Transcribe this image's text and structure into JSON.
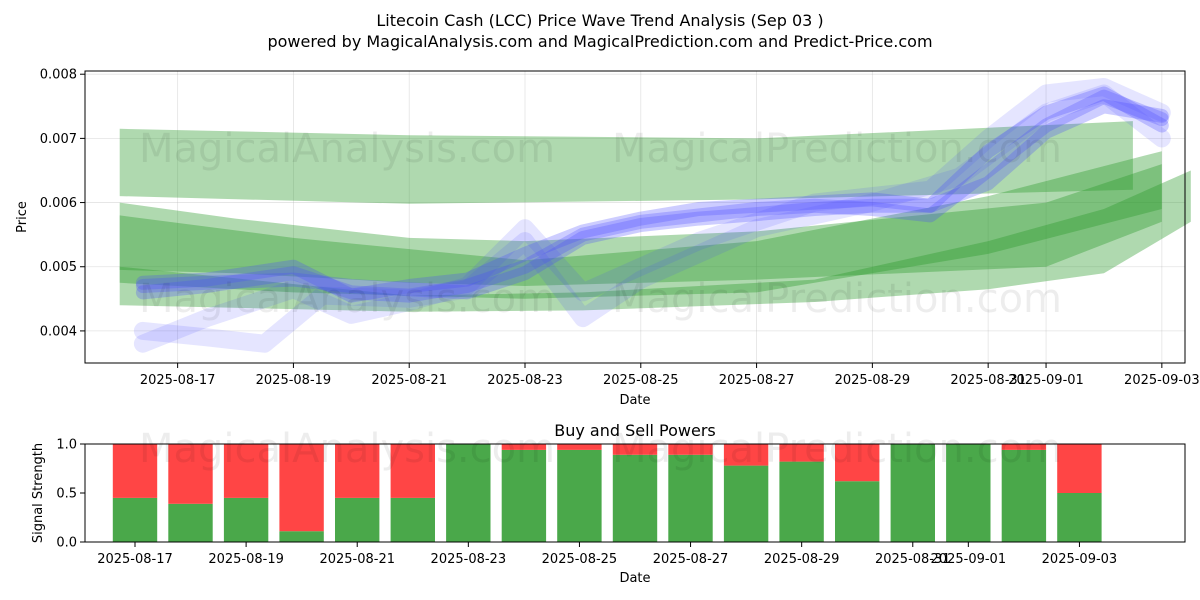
{
  "title": "Litecoin Cash (LCC) Price Wave Trend Analysis (Sep 03 )",
  "subtitle": "powered by MagicalAnalysis.com and MagicalPrediction.com and Predict-Price.com",
  "watermarks": [
    "MagicalAnalysis.com",
    "MagicalPrediction.com"
  ],
  "chart_data": [
    {
      "type": "area",
      "name": "price-wave",
      "xlabel": "Date",
      "ylabel": "Price",
      "xlim": [
        -1.6,
        17.4
      ],
      "ylim": [
        0.0035,
        0.00805
      ],
      "grid": true,
      "x_ticks": [
        {
          "pos": 0,
          "label": "2025-08-17"
        },
        {
          "pos": 2,
          "label": "2025-08-19"
        },
        {
          "pos": 4,
          "label": "2025-08-21"
        },
        {
          "pos": 6,
          "label": "2025-08-23"
        },
        {
          "pos": 8,
          "label": "2025-08-25"
        },
        {
          "pos": 10,
          "label": "2025-08-27"
        },
        {
          "pos": 12,
          "label": "2025-08-29"
        },
        {
          "pos": 14,
          "label": "2025-08-31"
        },
        {
          "pos": 15,
          "label": "2025-09-01"
        },
        {
          "pos": 17,
          "label": "2025-09-03"
        }
      ],
      "y_ticks": [
        {
          "value": 0.004,
          "label": "0.004"
        },
        {
          "value": 0.005,
          "label": "0.005"
        },
        {
          "value": 0.006,
          "label": "0.006"
        },
        {
          "value": 0.007,
          "label": "0.007"
        },
        {
          "value": 0.008,
          "label": "0.008"
        }
      ],
      "green_bands": [
        {
          "x": [
            -1.0,
            4.0,
            10.0,
            16.5
          ],
          "upper": [
            0.00715,
            0.00705,
            0.007,
            0.00727
          ],
          "lower": [
            0.0061,
            0.00598,
            0.00605,
            0.0062
          ]
        },
        {
          "x": [
            -1.0,
            1.0,
            4.0,
            6.0,
            10.0,
            15.0,
            17.0
          ],
          "upper": [
            0.006,
            0.00575,
            0.00545,
            0.0054,
            0.00555,
            0.006,
            0.0066
          ],
          "lower": [
            0.00495,
            0.0049,
            0.00475,
            0.0047,
            0.0048,
            0.005,
            0.0057
          ]
        },
        {
          "x": [
            -1.0,
            2.0,
            6.0,
            10.0,
            14.0,
            17.0
          ],
          "upper": [
            0.0058,
            0.00545,
            0.0051,
            0.0054,
            0.0061,
            0.0068
          ],
          "lower": [
            0.00475,
            0.0046,
            0.0045,
            0.0046,
            0.0052,
            0.0059
          ]
        },
        {
          "x": [
            -1.0,
            4.0,
            7.0,
            11.0,
            14.0,
            16.0,
            17.5
          ],
          "upper": [
            0.005,
            0.00455,
            0.0046,
            0.0048,
            0.0054,
            0.0059,
            0.0065
          ],
          "lower": [
            0.0044,
            0.0043,
            0.00432,
            0.00445,
            0.00465,
            0.0049,
            0.0057
          ]
        }
      ],
      "blue_series": [
        {
          "x": [
            -0.6,
            0.5,
            2.0,
            3.0,
            4.0,
            5.0,
            6.0,
            7.0,
            8.0,
            9.0,
            10.0,
            11.0,
            12.0,
            13.0,
            14.0,
            15.0,
            16.0,
            17.0
          ],
          "values": [
            0.0047,
            0.00475,
            0.0048,
            0.0047,
            0.00465,
            0.0046,
            0.0049,
            0.00545,
            0.00565,
            0.00575,
            0.00582,
            0.0059,
            0.00595,
            0.00595,
            0.0063,
            0.0071,
            0.0075,
            0.00735
          ]
        },
        {
          "x": [
            -0.6,
            0.5,
            2.0,
            3.0,
            4.0,
            5.0,
            6.0,
            7.0,
            8.0,
            9.0,
            10.0,
            11.0,
            12.0,
            13.0,
            14.0,
            15.0,
            16.0,
            17.0
          ],
          "values": [
            0.0046,
            0.0047,
            0.0049,
            0.0046,
            0.00455,
            0.0047,
            0.005,
            0.0055,
            0.0057,
            0.0058,
            0.0059,
            0.00595,
            0.0059,
            0.0058,
            0.0065,
            0.0072,
            0.00765,
            0.0073
          ]
        },
        {
          "x": [
            -0.6,
            0.5,
            2.0,
            3.0,
            4.0,
            5.0,
            6.0,
            7.0,
            8.0,
            9.0,
            10.0,
            11.0,
            12.0,
            13.0,
            14.0,
            15.0,
            16.0,
            17.0
          ],
          "values": [
            0.00475,
            0.0048,
            0.005,
            0.00455,
            0.0047,
            0.0048,
            0.0052,
            0.00555,
            0.00575,
            0.0059,
            0.00595,
            0.006,
            0.00605,
            0.00595,
            0.0068,
            0.0074,
            0.0077,
            0.0072
          ]
        },
        {
          "x": [
            -0.6,
            0.5,
            2.0,
            3.0,
            4.0,
            5.0,
            6.0,
            7.0,
            8.0,
            9.0,
            10.0,
            11.0,
            12.0,
            13.0,
            14.0,
            15.0,
            16.0,
            17.0
          ],
          "values": [
            0.0038,
            0.0042,
            0.00465,
            0.00425,
            0.00445,
            0.0047,
            0.0056,
            0.0046,
            0.005,
            0.0054,
            0.0057,
            0.006,
            0.0061,
            0.0062,
            0.007,
            0.0077,
            0.0078,
            0.0074
          ]
        },
        {
          "x": [
            -0.6,
            0.5,
            1.5,
            2.5,
            4.0,
            5.0,
            6.0,
            7.0,
            8.0,
            10.0,
            12.0,
            13.5,
            15.0,
            16.0,
            17.0
          ],
          "values": [
            0.004,
            0.0039,
            0.0038,
            0.00455,
            0.0045,
            0.00465,
            0.0054,
            0.0042,
            0.0048,
            0.0056,
            0.006,
            0.0064,
            0.0074,
            0.0077,
            0.007
          ]
        }
      ]
    },
    {
      "type": "bar",
      "name": "buy-sell-powers",
      "title": "Buy and Sell Powers",
      "xlabel": "Date",
      "ylabel": "Signal Strength",
      "xlim": [
        -0.9,
        18.9
      ],
      "ylim": [
        0,
        1.0
      ],
      "x_ticks": [
        {
          "pos": 0,
          "label": "2025-08-17"
        },
        {
          "pos": 2,
          "label": "2025-08-19"
        },
        {
          "pos": 4,
          "label": "2025-08-21"
        },
        {
          "pos": 6,
          "label": "2025-08-23"
        },
        {
          "pos": 8,
          "label": "2025-08-25"
        },
        {
          "pos": 10,
          "label": "2025-08-27"
        },
        {
          "pos": 12,
          "label": "2025-08-29"
        },
        {
          "pos": 14,
          "label": "2025-08-31"
        },
        {
          "pos": 15,
          "label": "2025-09-01"
        },
        {
          "pos": 17,
          "label": "2025-09-03"
        }
      ],
      "y_ticks": [
        {
          "value": 0.0,
          "label": "0.0"
        },
        {
          "value": 0.5,
          "label": "0.5"
        },
        {
          "value": 1.0,
          "label": "1.0"
        }
      ],
      "categories": [
        "2025-08-17",
        "2025-08-18",
        "2025-08-19",
        "2025-08-20",
        "2025-08-21",
        "2025-08-22",
        "2025-08-23",
        "2025-08-24",
        "2025-08-25",
        "2025-08-26",
        "2025-08-27",
        "2025-08-28",
        "2025-08-29",
        "2025-08-30",
        "2025-08-31",
        "2025-09-01",
        "2025-09-02",
        "2025-09-03"
      ],
      "series": [
        {
          "name": "Buy",
          "color": "#4aa84a",
          "values": [
            0.45,
            0.39,
            0.45,
            0.11,
            0.45,
            0.45,
            1.0,
            0.94,
            0.94,
            0.89,
            0.89,
            0.78,
            0.82,
            0.62,
            1.0,
            1.0,
            0.94,
            0.5
          ]
        },
        {
          "name": "Sell",
          "color": "#ff4545",
          "values": [
            0.55,
            0.61,
            0.55,
            0.89,
            0.55,
            0.55,
            0.0,
            0.06,
            0.06,
            0.11,
            0.11,
            0.22,
            0.18,
            0.38,
            0.0,
            0.0,
            0.06,
            0.5
          ]
        }
      ]
    }
  ]
}
